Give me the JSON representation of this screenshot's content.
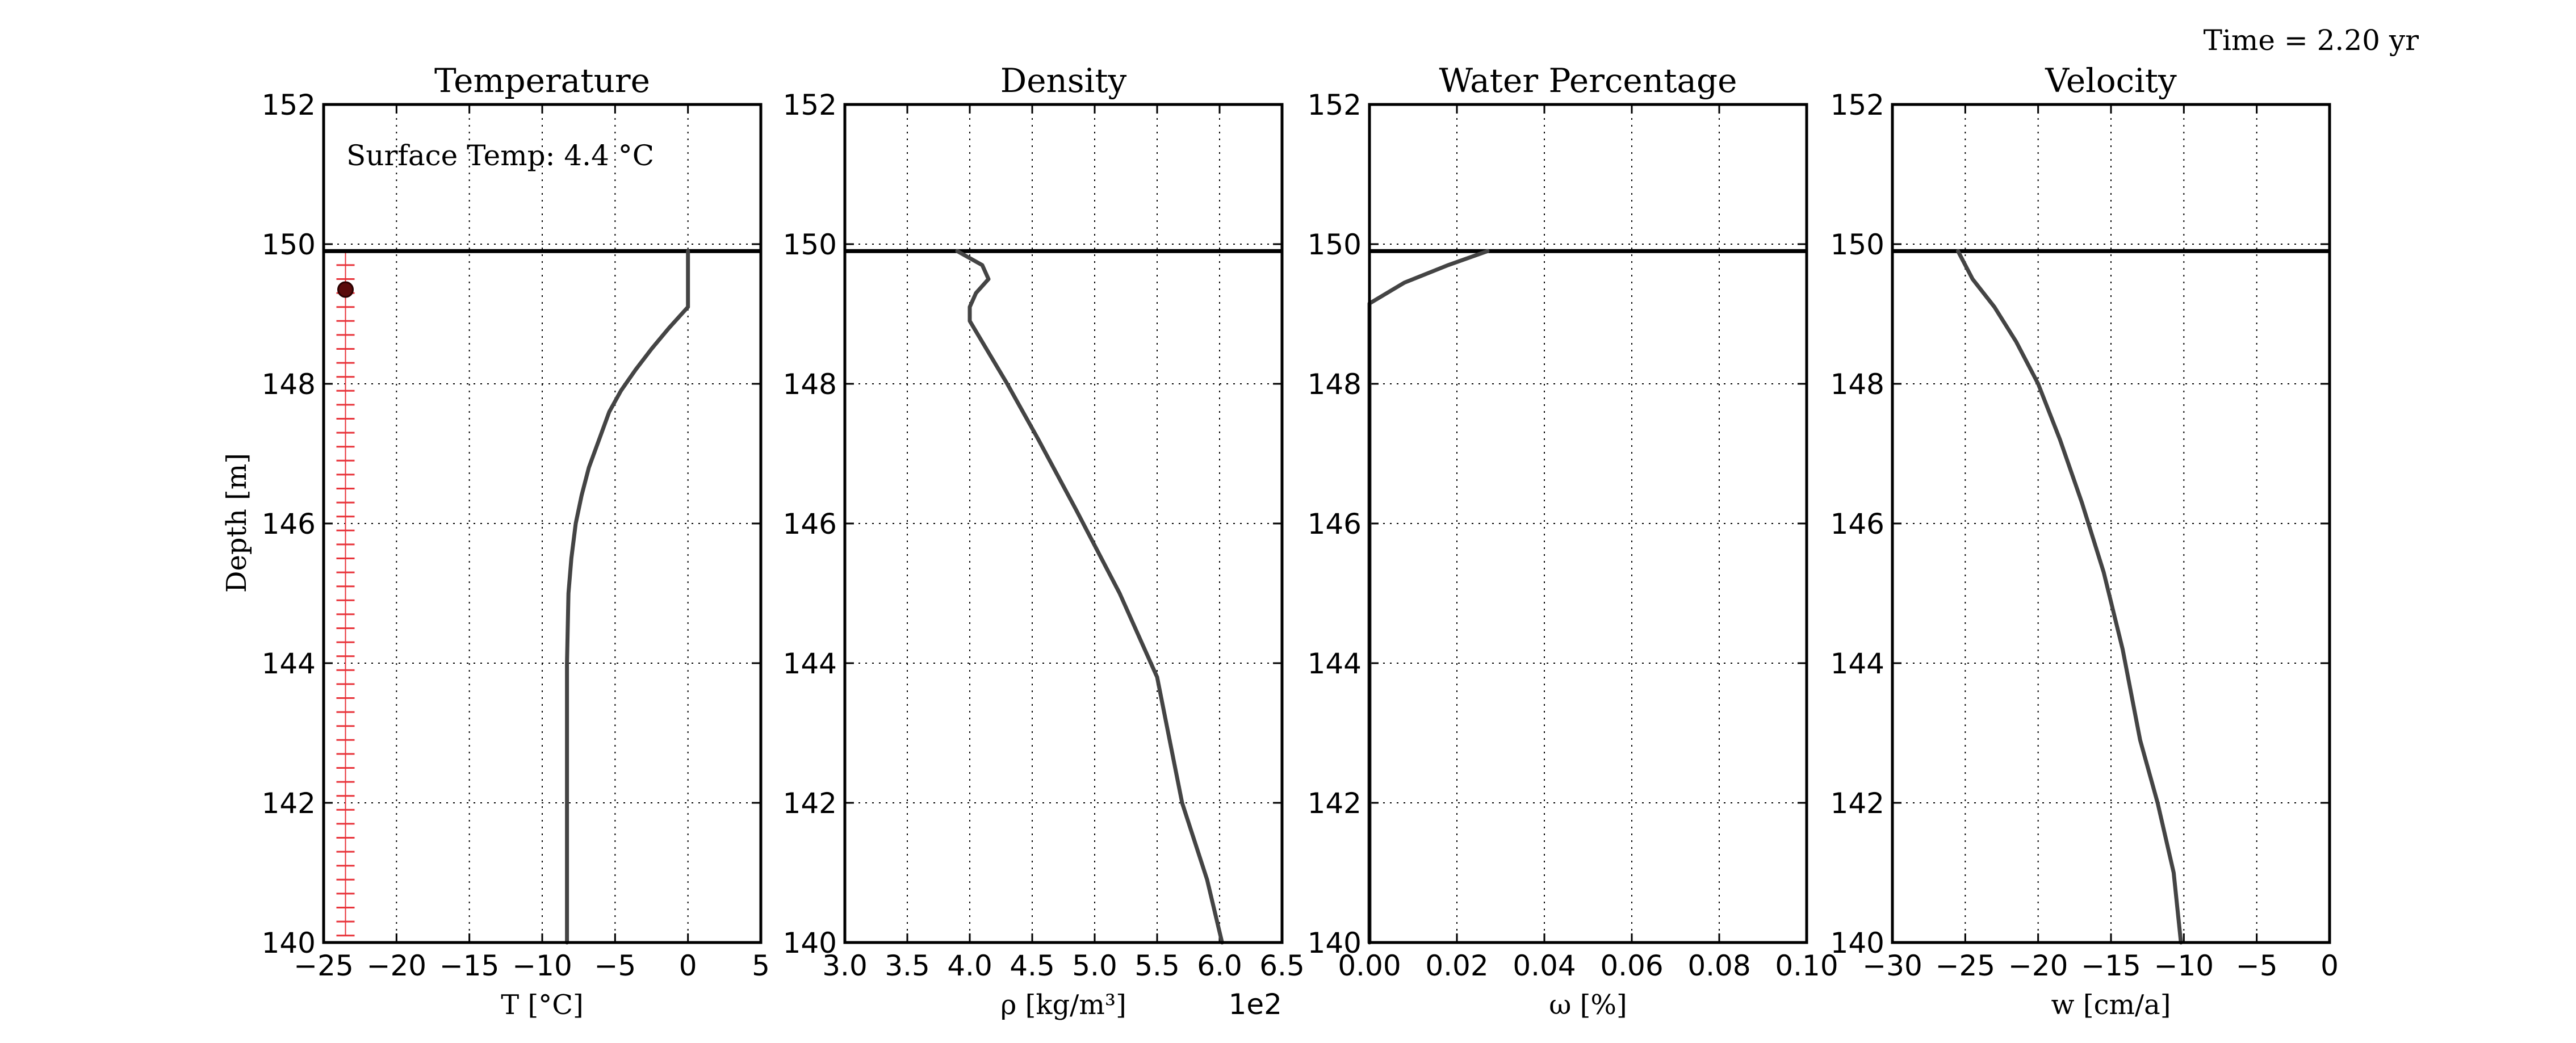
{
  "figure": {
    "time_label": "Time = 2.20 yr",
    "annotation": "Surface Temp: 4.4 °C",
    "ylabel": "Depth [m]",
    "ylim": [
      140,
      152
    ],
    "yticks": [
      "140",
      "142",
      "144",
      "146",
      "148",
      "150",
      "152"
    ],
    "surface_depth": 149.9,
    "grid": true,
    "line_color": "#444444",
    "marker_color": "#e8333a"
  },
  "chart_data": [
    {
      "type": "line",
      "title": "Temperature",
      "xlabel": "T [°C]",
      "xlim": [
        -25,
        5
      ],
      "xticks": [
        "−25",
        "−20",
        "−15",
        "−10",
        "−5",
        "0",
        "5"
      ],
      "series": [
        {
          "points": [
            [
              0.0,
              149.9
            ],
            [
              0.0,
              149.1
            ],
            [
              -1.3,
              148.8
            ],
            [
              -2.5,
              148.5
            ],
            [
              -3.6,
              148.2
            ],
            [
              -4.6,
              147.9
            ],
            [
              -5.4,
              147.6
            ],
            [
              -6.1,
              147.2
            ],
            [
              -6.8,
              146.8
            ],
            [
              -7.3,
              146.4
            ],
            [
              -7.7,
              146.0
            ],
            [
              -8.0,
              145.5
            ],
            [
              -8.2,
              145.0
            ],
            [
              -8.3,
              144.0
            ],
            [
              -8.3,
              142.0
            ],
            [
              -8.3,
              140.0
            ]
          ]
        }
      ],
      "sensor_depths": [
        149.9,
        149.7,
        149.5,
        149.3,
        149.1,
        148.9,
        148.7,
        148.5,
        148.3,
        148.1,
        147.9,
        147.7,
        147.5,
        147.3,
        147.1,
        146.9,
        146.7,
        146.5,
        146.3,
        146.1,
        145.9,
        145.7,
        145.5,
        145.3,
        145.1,
        144.9,
        144.7,
        144.5,
        144.3,
        144.1,
        143.9,
        143.7,
        143.5,
        143.3,
        143.1,
        142.9,
        142.7,
        142.5,
        142.3,
        142.1,
        141.9,
        141.7,
        141.5,
        141.3,
        141.1,
        140.9,
        140.7,
        140.5,
        140.3,
        140.1
      ],
      "sensor_x": -23.5,
      "marker": {
        "x": -23.5,
        "y": 149.35
      }
    },
    {
      "type": "line",
      "title": "Density",
      "xlabel": "ρ [kg/m³]",
      "offset_label": "1e2",
      "xlim": [
        3.0,
        6.5
      ],
      "xticks": [
        "3.0",
        "3.5",
        "4.0",
        "4.5",
        "5.0",
        "5.5",
        "6.0",
        "6.5"
      ],
      "series": [
        {
          "points": [
            [
              3.9,
              149.9
            ],
            [
              4.1,
              149.7
            ],
            [
              4.15,
              149.5
            ],
            [
              4.05,
              149.3
            ],
            [
              4.0,
              149.1
            ],
            [
              4.0,
              148.9
            ],
            [
              4.1,
              148.6
            ],
            [
              4.3,
              148.0
            ],
            [
              4.55,
              147.2
            ],
            [
              4.85,
              146.2
            ],
            [
              5.2,
              145.0
            ],
            [
              5.5,
              143.8
            ],
            [
              5.7,
              142.0
            ],
            [
              5.9,
              140.9
            ],
            [
              6.02,
              140.0
            ]
          ]
        }
      ]
    },
    {
      "type": "line",
      "title": "Water Percentage",
      "xlabel": "ω [%]",
      "xlim": [
        0.0,
        0.1
      ],
      "xticks": [
        "0.00",
        "0.02",
        "0.04",
        "0.06",
        "0.08",
        "0.10"
      ],
      "series": [
        {
          "points": [
            [
              0.027,
              149.9
            ],
            [
              0.018,
              149.7
            ],
            [
              0.008,
              149.45
            ],
            [
              0.0,
              149.15
            ],
            [
              0.0,
              140.0
            ]
          ]
        }
      ]
    },
    {
      "type": "line",
      "title": "Velocity",
      "xlabel": "w [cm/a]",
      "xlim": [
        -30,
        0
      ],
      "xticks": [
        "−30",
        "−25",
        "−20",
        "−15",
        "−10",
        "−5",
        "0"
      ],
      "series": [
        {
          "points": [
            [
              -25.5,
              149.9
            ],
            [
              -24.5,
              149.5
            ],
            [
              -23.0,
              149.1
            ],
            [
              -21.5,
              148.6
            ],
            [
              -20.0,
              148.0
            ],
            [
              -18.5,
              147.2
            ],
            [
              -17.0,
              146.3
            ],
            [
              -15.5,
              145.3
            ],
            [
              -14.2,
              144.2
            ],
            [
              -13.0,
              142.9
            ],
            [
              -11.8,
              142.0
            ],
            [
              -10.7,
              141.0
            ],
            [
              -10.2,
              140.0
            ]
          ]
        }
      ]
    }
  ]
}
